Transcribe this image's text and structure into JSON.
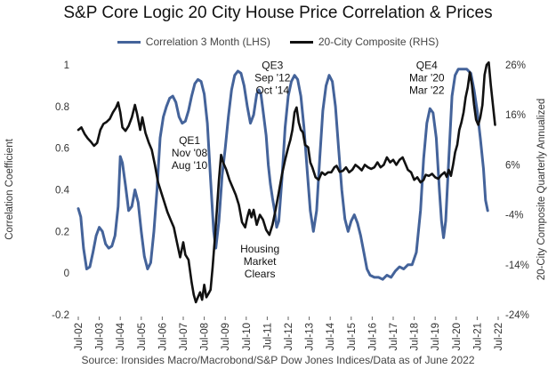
{
  "chart_data": {
    "type": "line",
    "title": "S&P Core Logic 20 City House Price Correlation & Prices",
    "source": "Source: Ironsides Macro/Macrobond/S&P Dow Jones Indices/Data as of June 2022",
    "left_axis": {
      "label": "Correlation Coefficient",
      "ylim": [
        -0.2,
        1.0
      ],
      "ticks": [
        "-0.2",
        "0",
        "0.2",
        "0.4",
        "0.6",
        "0.8",
        "1"
      ]
    },
    "right_axis": {
      "label": "20-City Composite Quarterly Annualized",
      "ylim": [
        -24,
        26
      ],
      "ticks": [
        "-24%",
        "-14%",
        "-4%",
        "6%",
        "16%",
        "26%"
      ]
    },
    "x_ticks": [
      "Jul-02",
      "Jul-03",
      "Jul-04",
      "Jul-05",
      "Jul-06",
      "Jul-07",
      "Jul-08",
      "Jul-09",
      "Jul-10",
      "Jul-11",
      "Jul-12",
      "Jul-13",
      "Jul-14",
      "Jul-15",
      "Jul-16",
      "Jul-17",
      "Jul-18",
      "Jul-19",
      "Jul-20",
      "Jul-21",
      "Jul-22"
    ],
    "x_range": [
      2002.5,
      2022.5
    ],
    "series": [
      {
        "name": "Correlation 3 Month (LHS)",
        "axis": "left",
        "color": "#44639a",
        "points": [
          [
            2002.5,
            0.31
          ],
          [
            2002.62,
            0.27
          ],
          [
            2002.75,
            0.12
          ],
          [
            2002.9,
            0.02
          ],
          [
            2003.05,
            0.03
          ],
          [
            2003.2,
            0.1
          ],
          [
            2003.35,
            0.18
          ],
          [
            2003.5,
            0.22
          ],
          [
            2003.65,
            0.2
          ],
          [
            2003.8,
            0.14
          ],
          [
            2003.95,
            0.12
          ],
          [
            2004.1,
            0.13
          ],
          [
            2004.25,
            0.18
          ],
          [
            2004.4,
            0.32
          ],
          [
            2004.5,
            0.56
          ],
          [
            2004.6,
            0.53
          ],
          [
            2004.75,
            0.42
          ],
          [
            2004.9,
            0.3
          ],
          [
            2005.05,
            0.32
          ],
          [
            2005.2,
            0.4
          ],
          [
            2005.35,
            0.34
          ],
          [
            2005.5,
            0.2
          ],
          [
            2005.65,
            0.08
          ],
          [
            2005.8,
            0.02
          ],
          [
            2005.95,
            0.05
          ],
          [
            2006.1,
            0.2
          ],
          [
            2006.25,
            0.4
          ],
          [
            2006.4,
            0.65
          ],
          [
            2006.55,
            0.75
          ],
          [
            2006.7,
            0.8
          ],
          [
            2006.85,
            0.84
          ],
          [
            2007.0,
            0.85
          ],
          [
            2007.15,
            0.82
          ],
          [
            2007.3,
            0.75
          ],
          [
            2007.45,
            0.72
          ],
          [
            2007.6,
            0.73
          ],
          [
            2007.75,
            0.78
          ],
          [
            2007.9,
            0.85
          ],
          [
            2008.05,
            0.91
          ],
          [
            2008.2,
            0.93
          ],
          [
            2008.35,
            0.92
          ],
          [
            2008.5,
            0.86
          ],
          [
            2008.65,
            0.72
          ],
          [
            2008.8,
            0.45
          ],
          [
            2008.95,
            0.2
          ],
          [
            2009.05,
            0.12
          ],
          [
            2009.2,
            0.25
          ],
          [
            2009.35,
            0.47
          ],
          [
            2009.5,
            0.6
          ],
          [
            2009.65,
            0.75
          ],
          [
            2009.8,
            0.88
          ],
          [
            2009.95,
            0.95
          ],
          [
            2010.1,
            0.97
          ],
          [
            2010.25,
            0.96
          ],
          [
            2010.4,
            0.9
          ],
          [
            2010.55,
            0.8
          ],
          [
            2010.7,
            0.72
          ],
          [
            2010.85,
            0.76
          ],
          [
            2011.0,
            0.86
          ],
          [
            2011.1,
            0.88
          ],
          [
            2011.2,
            0.86
          ],
          [
            2011.3,
            0.78
          ],
          [
            2011.45,
            0.66
          ],
          [
            2011.55,
            0.52
          ],
          [
            2011.65,
            0.43
          ],
          [
            2011.75,
            0.36
          ],
          [
            2011.85,
            0.3
          ],
          [
            2011.95,
            0.22
          ],
          [
            2012.05,
            0.25
          ],
          [
            2012.2,
            0.45
          ],
          [
            2012.35,
            0.7
          ],
          [
            2012.5,
            0.85
          ],
          [
            2012.65,
            0.92
          ],
          [
            2012.8,
            0.95
          ],
          [
            2012.95,
            0.93
          ],
          [
            2013.1,
            0.85
          ],
          [
            2013.25,
            0.7
          ],
          [
            2013.4,
            0.5
          ],
          [
            2013.55,
            0.3
          ],
          [
            2013.7,
            0.2
          ],
          [
            2013.85,
            0.3
          ],
          [
            2014.0,
            0.55
          ],
          [
            2014.15,
            0.78
          ],
          [
            2014.3,
            0.9
          ],
          [
            2014.45,
            0.95
          ],
          [
            2014.6,
            0.92
          ],
          [
            2014.75,
            0.8
          ],
          [
            2014.9,
            0.6
          ],
          [
            2015.05,
            0.4
          ],
          [
            2015.2,
            0.26
          ],
          [
            2015.35,
            0.2
          ],
          [
            2015.5,
            0.25
          ],
          [
            2015.65,
            0.28
          ],
          [
            2015.8,
            0.24
          ],
          [
            2015.95,
            0.18
          ],
          [
            2016.1,
            0.1
          ],
          [
            2016.25,
            0.02
          ],
          [
            2016.4,
            -0.01
          ],
          [
            2016.6,
            -0.02
          ],
          [
            2016.8,
            -0.02
          ],
          [
            2017.0,
            -0.03
          ],
          [
            2017.2,
            -0.01
          ],
          [
            2017.4,
            -0.02
          ],
          [
            2017.6,
            0.01
          ],
          [
            2017.8,
            0.03
          ],
          [
            2018.0,
            0.02
          ],
          [
            2018.2,
            0.04
          ],
          [
            2018.4,
            0.04
          ],
          [
            2018.6,
            0.1
          ],
          [
            2018.8,
            0.3
          ],
          [
            2018.95,
            0.55
          ],
          [
            2019.1,
            0.72
          ],
          [
            2019.25,
            0.79
          ],
          [
            2019.4,
            0.77
          ],
          [
            2019.55,
            0.65
          ],
          [
            2019.7,
            0.4
          ],
          [
            2019.8,
            0.25
          ],
          [
            2019.9,
            0.17
          ],
          [
            2020.0,
            0.25
          ],
          [
            2020.15,
            0.55
          ],
          [
            2020.3,
            0.85
          ],
          [
            2020.45,
            0.95
          ],
          [
            2020.6,
            0.98
          ],
          [
            2020.8,
            0.98
          ],
          [
            2021.0,
            0.98
          ],
          [
            2021.2,
            0.96
          ],
          [
            2021.35,
            0.88
          ],
          [
            2021.5,
            0.78
          ],
          [
            2021.65,
            0.65
          ],
          [
            2021.8,
            0.5
          ],
          [
            2021.9,
            0.35
          ],
          [
            2022.0,
            0.3
          ]
        ]
      },
      {
        "name": "20-City Composite (RHS)",
        "axis": "right",
        "color": "#111111",
        "points": [
          [
            2002.5,
            13.0
          ],
          [
            2002.65,
            13.5
          ],
          [
            2002.8,
            12.2
          ],
          [
            2002.95,
            11.3
          ],
          [
            2003.1,
            10.6
          ],
          [
            2003.25,
            9.8
          ],
          [
            2003.4,
            10.4
          ],
          [
            2003.55,
            13.0
          ],
          [
            2003.7,
            14.2
          ],
          [
            2003.85,
            14.6
          ],
          [
            2004.0,
            15.2
          ],
          [
            2004.15,
            16.5
          ],
          [
            2004.3,
            17.5
          ],
          [
            2004.4,
            18.5
          ],
          [
            2004.5,
            16.5
          ],
          [
            2004.6,
            13.5
          ],
          [
            2004.75,
            12.8
          ],
          [
            2004.9,
            13.8
          ],
          [
            2005.05,
            15.5
          ],
          [
            2005.2,
            18.0
          ],
          [
            2005.3,
            16.2
          ],
          [
            2005.45,
            13.0
          ],
          [
            2005.55,
            15.5
          ],
          [
            2005.7,
            12.4
          ],
          [
            2005.85,
            10.5
          ],
          [
            2006.0,
            9.0
          ],
          [
            2006.15,
            6.0
          ],
          [
            2006.3,
            2.5
          ],
          [
            2006.45,
            0.5
          ],
          [
            2006.6,
            -1.5
          ],
          [
            2006.75,
            -3.5
          ],
          [
            2006.9,
            -5.0
          ],
          [
            2007.05,
            -6.5
          ],
          [
            2007.2,
            -9.5
          ],
          [
            2007.35,
            -12.5
          ],
          [
            2007.5,
            -9.5
          ],
          [
            2007.6,
            -12.0
          ],
          [
            2007.75,
            -13.0
          ],
          [
            2007.9,
            -17.5
          ],
          [
            2008.0,
            -20.0
          ],
          [
            2008.1,
            -21.5
          ],
          [
            2008.2,
            -20.5
          ],
          [
            2008.3,
            -19.5
          ],
          [
            2008.4,
            -21.0
          ],
          [
            2008.5,
            -18.0
          ],
          [
            2008.6,
            -20.5
          ],
          [
            2008.7,
            -19.8
          ],
          [
            2008.8,
            -19.0
          ],
          [
            2008.9,
            -14.5
          ],
          [
            2009.0,
            -9.0
          ],
          [
            2009.1,
            -3.0
          ],
          [
            2009.2,
            3.0
          ],
          [
            2009.3,
            8.0
          ],
          [
            2009.4,
            6.5
          ],
          [
            2009.55,
            5.0
          ],
          [
            2009.7,
            3.0
          ],
          [
            2009.85,
            1.5
          ],
          [
            2010.0,
            0.0
          ],
          [
            2010.15,
            -2.0
          ],
          [
            2010.3,
            -5.5
          ],
          [
            2010.45,
            -6.5
          ],
          [
            2010.55,
            -4.5
          ],
          [
            2010.65,
            -3.0
          ],
          [
            2010.75,
            -4.5
          ],
          [
            2010.85,
            -3.0
          ],
          [
            2011.0,
            -6.0
          ],
          [
            2011.15,
            -4.0
          ],
          [
            2011.3,
            -5.0
          ],
          [
            2011.45,
            -7.0
          ],
          [
            2011.6,
            -8.0
          ],
          [
            2011.75,
            -6.0
          ],
          [
            2011.9,
            -3.0
          ],
          [
            2012.05,
            0.5
          ],
          [
            2012.2,
            4.0
          ],
          [
            2012.35,
            7.0
          ],
          [
            2012.5,
            9.5
          ],
          [
            2012.6,
            11.0
          ],
          [
            2012.7,
            13.0
          ],
          [
            2012.8,
            16.5
          ],
          [
            2012.9,
            17.5
          ],
          [
            2013.0,
            14.5
          ],
          [
            2013.1,
            13.0
          ],
          [
            2013.2,
            12.5
          ],
          [
            2013.3,
            10.0
          ],
          [
            2013.45,
            9.5
          ],
          [
            2013.55,
            6.5
          ],
          [
            2013.65,
            5.5
          ],
          [
            2013.8,
            3.5
          ],
          [
            2013.95,
            3.0
          ],
          [
            2014.1,
            4.5
          ],
          [
            2014.25,
            4.0
          ],
          [
            2014.4,
            4.5
          ],
          [
            2014.55,
            4.5
          ],
          [
            2014.7,
            5.5
          ],
          [
            2014.8,
            5.8
          ],
          [
            2014.95,
            4.6
          ],
          [
            2015.1,
            4.8
          ],
          [
            2015.25,
            5.5
          ],
          [
            2015.4,
            4.5
          ],
          [
            2015.55,
            5.0
          ],
          [
            2015.7,
            6.0
          ],
          [
            2015.85,
            5.5
          ],
          [
            2016.0,
            4.9
          ],
          [
            2016.15,
            6.0
          ],
          [
            2016.3,
            5.5
          ],
          [
            2016.45,
            5.2
          ],
          [
            2016.6,
            5.5
          ],
          [
            2016.75,
            6.5
          ],
          [
            2016.9,
            5.5
          ],
          [
            2017.05,
            6.0
          ],
          [
            2017.2,
            7.5
          ],
          [
            2017.35,
            6.5
          ],
          [
            2017.5,
            7.0
          ],
          [
            2017.65,
            6.0
          ],
          [
            2017.8,
            7.0
          ],
          [
            2017.95,
            7.5
          ],
          [
            2018.05,
            6.5
          ],
          [
            2018.2,
            5.0
          ],
          [
            2018.35,
            4.5
          ],
          [
            2018.5,
            3.0
          ],
          [
            2018.65,
            3.5
          ],
          [
            2018.8,
            2.5
          ],
          [
            2018.95,
            3.0
          ],
          [
            2019.05,
            4.0
          ],
          [
            2019.2,
            3.8
          ],
          [
            2019.35,
            4.2
          ],
          [
            2019.5,
            3.5
          ],
          [
            2019.65,
            3.2
          ],
          [
            2019.8,
            4.0
          ],
          [
            2019.95,
            4.5
          ],
          [
            2020.05,
            3.6
          ],
          [
            2020.15,
            5.0
          ],
          [
            2020.25,
            3.8
          ],
          [
            2020.35,
            6.0
          ],
          [
            2020.45,
            8.5
          ],
          [
            2020.55,
            10.0
          ],
          [
            2020.65,
            13.0
          ],
          [
            2020.75,
            14.5
          ],
          [
            2020.85,
            16.5
          ],
          [
            2020.95,
            19.5
          ],
          [
            2021.05,
            21.5
          ],
          [
            2021.15,
            24.5
          ],
          [
            2021.25,
            22.0
          ],
          [
            2021.35,
            18.0
          ],
          [
            2021.45,
            15.0
          ],
          [
            2021.55,
            14.0
          ],
          [
            2021.65,
            15.5
          ],
          [
            2021.75,
            18.0
          ],
          [
            2021.85,
            24.0
          ],
          [
            2021.95,
            26.0
          ],
          [
            2022.05,
            26.5
          ],
          [
            2022.15,
            22.0
          ],
          [
            2022.25,
            18.0
          ],
          [
            2022.35,
            14.0
          ]
        ]
      }
    ],
    "annotations": [
      {
        "lines": [
          "QE1",
          "Nov '08",
          "Aug '10"
        ],
        "x": 2007.8,
        "y_left": 0.62
      },
      {
        "lines": [
          "QE3",
          "Sep '12",
          "Oct '14"
        ],
        "x": 2011.75,
        "y_left": 0.98
      },
      {
        "lines": [
          "QE4",
          "Mar '20",
          "Mar '22"
        ],
        "x": 2019.1,
        "y_left": 0.98
      },
      {
        "lines": [
          "Housing",
          "Market",
          "Clears"
        ],
        "x": 2011.15,
        "y_left": 0.1
      }
    ]
  }
}
